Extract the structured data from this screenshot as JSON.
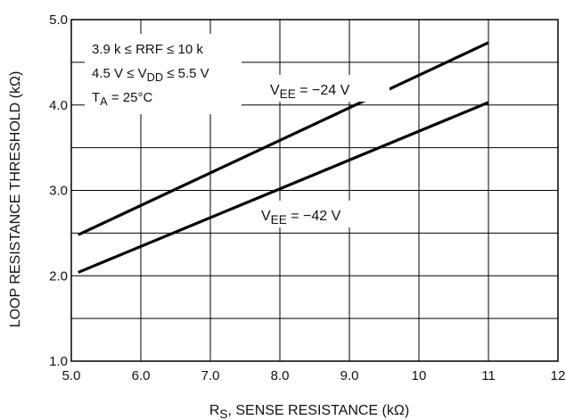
{
  "chart_data": {
    "type": "line",
    "xlabel": {
      "main": "R",
      "sub": "S",
      "rest": ", SENSE RESISTANCE (kΩ)"
    },
    "ylabel": "LOOP RESISTANCE THRESHOLD (kΩ)",
    "xlim": [
      5.0,
      12
    ],
    "ylim": [
      1.0,
      5.0
    ],
    "x_ticks": [
      {
        "value": 5.0,
        "label": "5.0"
      },
      {
        "value": 6.0,
        "label": "6.0"
      },
      {
        "value": 7.0,
        "label": "7.0"
      },
      {
        "value": 8.0,
        "label": "8.0"
      },
      {
        "value": 9.0,
        "label": "9.0"
      },
      {
        "value": 10,
        "label": "10"
      },
      {
        "value": 11,
        "label": "11"
      },
      {
        "value": 12,
        "label": "12"
      }
    ],
    "y_ticks": [
      {
        "value": 1.0,
        "label": "1.0"
      },
      {
        "value": 2.0,
        "label": "2.0"
      },
      {
        "value": 3.0,
        "label": "3.0"
      },
      {
        "value": 4.0,
        "label": "4.0"
      },
      {
        "value": 5.0,
        "label": "5.0"
      }
    ],
    "grid": true,
    "grid_minor_y": [
      1.5,
      2.5,
      3.5,
      4.5
    ],
    "series": [
      {
        "label": {
          "main": "V",
          "sub": "EE",
          "rest": " = −24 V"
        },
        "x": [
          5.1,
          11.0
        ],
        "y": [
          2.48,
          4.73
        ],
        "color": "#000000"
      },
      {
        "label": {
          "main": "V",
          "sub": "EE",
          "rest": " = −42 V"
        },
        "x": [
          5.1,
          11.0
        ],
        "y": [
          2.04,
          4.03
        ],
        "color": "#000000"
      }
    ],
    "conditions": [
      {
        "main": "3.9 k ≤ RRF ≤ 10 k",
        "sub": "",
        "rest": ""
      },
      {
        "main": "4.5 V ≤ V",
        "sub": "DD",
        "rest": " ≤ 5.5 V"
      },
      {
        "main": "T",
        "sub": "A",
        "rest": " = 25°C"
      }
    ]
  }
}
